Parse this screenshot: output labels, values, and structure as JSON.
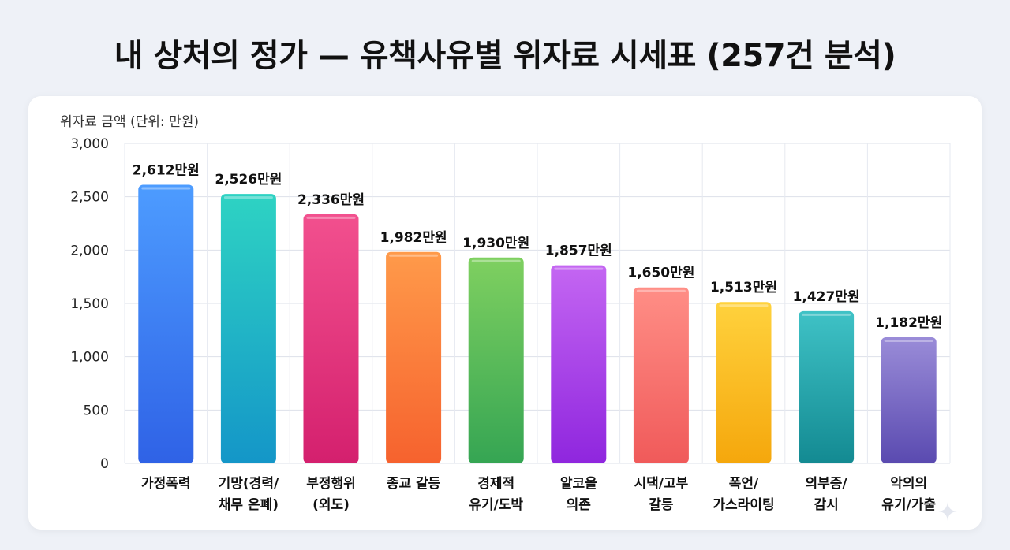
{
  "title": "내 상처의 정가 — 유책사유별 위자료 시세표 (257건 분석)",
  "chart_data": {
    "type": "bar",
    "ylabel": "위자료 금액 (단위: 만원)",
    "ylim": [
      0,
      3000
    ],
    "yticks": [
      0,
      500,
      1000,
      1500,
      2000,
      2500,
      3000
    ],
    "grid": true,
    "value_suffix": "만원",
    "categories": [
      [
        "가정폭력"
      ],
      [
        "기망(경력/",
        "채무 은폐)"
      ],
      [
        "부정행위",
        "(외도)"
      ],
      [
        "종교 갈등"
      ],
      [
        "경제적",
        "유기/도박"
      ],
      [
        "알코올",
        "의존"
      ],
      [
        "시댁/고부",
        "갈등"
      ],
      [
        "폭언/",
        "가스라이팅"
      ],
      [
        "의부증/",
        "감시"
      ],
      [
        "악의의",
        "유기/가출"
      ]
    ],
    "values": [
      2612,
      2526,
      2336,
      1982,
      1930,
      1857,
      1650,
      1513,
      1427,
      1182
    ],
    "value_labels": [
      "2,612만원",
      "2,526만원",
      "2,336만원",
      "1,982만원",
      "1,930만원",
      "1,857만원",
      "1,650만원",
      "1,513만원",
      "1,427만원",
      "1,182만원"
    ],
    "colors": [
      [
        "#4d9cff",
        "#2f62e6"
      ],
      [
        "#2ed3c3",
        "#1496c8"
      ],
      [
        "#f2508e",
        "#d4206e"
      ],
      [
        "#ff9a4a",
        "#f6622e"
      ],
      [
        "#7fd060",
        "#35a553"
      ],
      [
        "#c466f2",
        "#8f26de"
      ],
      [
        "#ff8e86",
        "#f05a5a"
      ],
      [
        "#ffd23d",
        "#f5a70c"
      ],
      [
        "#3fc2c6",
        "#138a92"
      ],
      [
        "#9a8cd8",
        "#5a4ab0"
      ]
    ]
  }
}
